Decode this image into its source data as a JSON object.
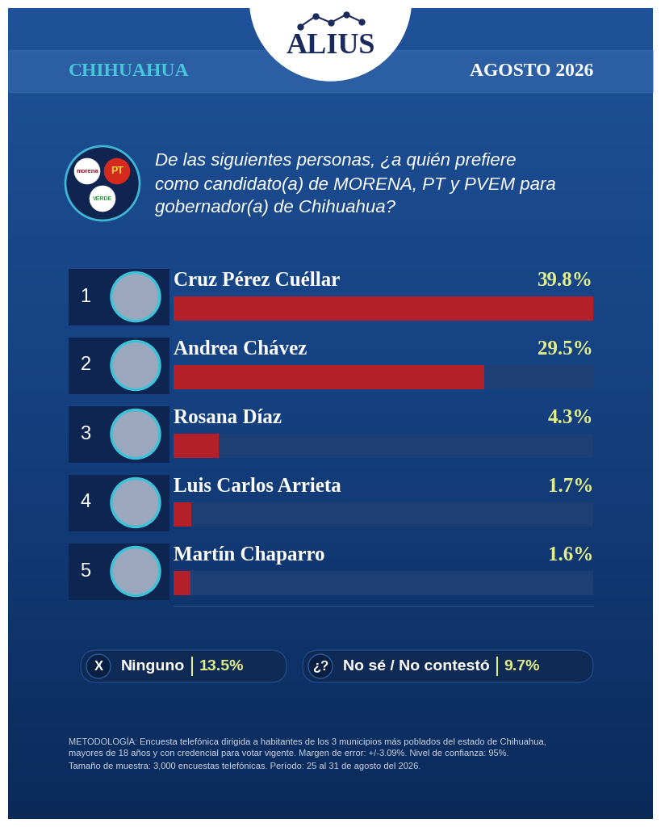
{
  "chart_data": {
    "type": "bar",
    "orientation": "horizontal",
    "brand": "ALIUS",
    "region": "CHIHUAHUA",
    "date": "AGOSTO 2026",
    "logos": [
      "morena",
      "PT",
      "VERDE"
    ],
    "title": "De las siguientes personas, ¿a quién prefiere como candidato(a) de MORENA, PT y PVEM para gobernador(a) de Chihuahua?",
    "ranks": [
      1,
      2,
      3,
      4,
      5
    ],
    "categories": [
      "Cruz Pérez Cuéllar",
      "Andrea Chávez",
      "Rosana Díaz",
      "Luis Carlos Arrieta",
      "Martín Chaparro"
    ],
    "values": [
      39.8,
      29.5,
      4.3,
      1.7,
      1.6
    ],
    "value_labels": [
      "39.8%",
      "29.5%",
      "4.3%",
      "1.7%",
      "1.6%"
    ],
    "color": "#b3202a",
    "xlim": [
      0,
      39.8
    ],
    "xticks": [],
    "tick_labels": false,
    "grid": false,
    "data_labels": true,
    "other_answers": [
      {
        "icon": "X",
        "label": "Ninguno",
        "value": "13.5%"
      },
      {
        "icon": "¿?",
        "label": "No sé / No contestó",
        "value": "9.7%"
      }
    ],
    "methodology": "METODOLOGÍA: Encuesta telefónica dirigida a habitantes de los 3 municipios más poblados del estado de Chihuahua, mayores de 18 años y con credencial para votar vigente. Margen de error: +/-3.09%. Nivel de confianza: 95%. Tamaño de muestra: 3,000 encuestas telefónicas. Período: 25 al 31 de agosto del 2026."
  }
}
